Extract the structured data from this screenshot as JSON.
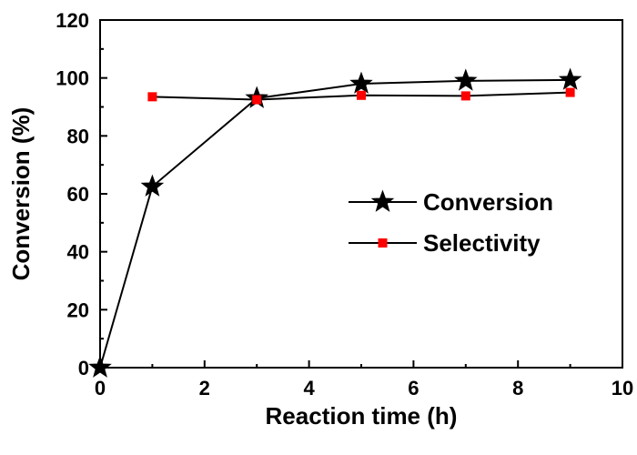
{
  "chart_data": {
    "type": "line",
    "xlabel": "Reaction time (h)",
    "ylabel": "Conversion (%)",
    "xlim": [
      0,
      10
    ],
    "ylim": [
      0,
      120
    ],
    "xticks": [
      0,
      2,
      4,
      6,
      8,
      10
    ],
    "yticks": [
      0,
      20,
      40,
      60,
      80,
      100,
      120
    ],
    "grid": false,
    "legend_position": "center-right",
    "series": [
      {
        "name": "Conversion",
        "marker": "star",
        "color": "#000000",
        "x": [
          0,
          1,
          3,
          5,
          7,
          9
        ],
        "y": [
          0,
          62.5,
          93.0,
          98.0,
          99.0,
          99.3
        ]
      },
      {
        "name": "Selectivity",
        "marker": "square",
        "color": "#ff0000",
        "x": [
          1,
          3,
          5,
          7,
          9
        ],
        "y": [
          93.5,
          92.5,
          94.0,
          93.8,
          95.0
        ]
      }
    ]
  }
}
